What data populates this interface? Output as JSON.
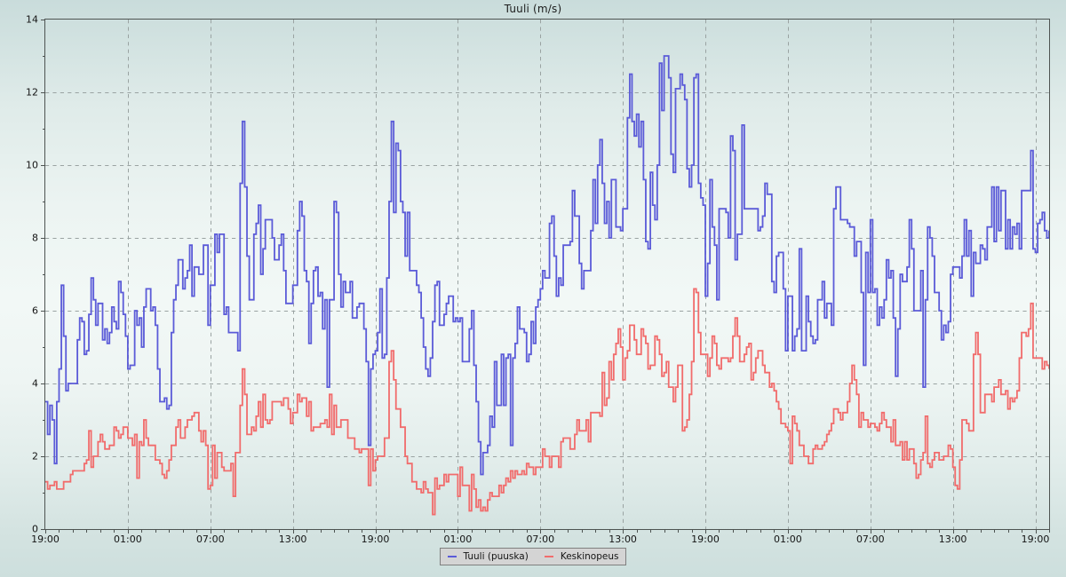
{
  "chart_data": {
    "type": "line",
    "subtype": "step",
    "title": "Tuuli (m/s)",
    "x_start_label": "19:00",
    "x_interval_minutes": 10,
    "x_span_hours": 73,
    "x_major_tick_hours": 6,
    "x_minor_tick_hours": 1,
    "x_tick_labels": [
      "19:00",
      "01:00",
      "07:00",
      "13:00",
      "19:00",
      "01:00",
      "07:00",
      "13:00",
      "19:00",
      "01:00",
      "07:00",
      "13:00",
      "19:00"
    ],
    "y_ticks": [
      0,
      2,
      4,
      6,
      8,
      10,
      12,
      14
    ],
    "y_minor_step": 1,
    "ylim": [
      0,
      14
    ],
    "grid": "dashed",
    "legend_position": "bottom-center",
    "series": [
      {
        "name": "Tuuli (puuska)",
        "color": "#5b5bd8",
        "values": [
          3.5,
          2.6,
          3.4,
          3.0,
          1.8,
          3.5,
          4.4,
          6.7,
          5.3,
          3.8,
          4.0,
          4.0,
          4.0,
          4.0,
          5.2,
          5.8,
          5.7,
          4.8,
          4.9,
          5.9,
          6.9,
          6.3,
          5.6,
          6.2,
          6.2,
          5.2,
          5.5,
          5.1,
          5.4,
          6.1,
          5.7,
          5.5,
          6.8,
          6.5,
          5.9,
          5.3,
          4.4,
          4.5,
          4.5,
          6.0,
          5.6,
          5.8,
          5.0,
          6.1,
          6.6,
          6.6,
          6.0,
          6.1,
          5.6,
          4.4,
          3.5,
          3.5,
          3.6,
          3.3,
          3.4,
          5.4,
          6.3,
          6.7,
          7.4,
          7.4,
          6.6,
          6.9,
          7.1,
          7.8,
          6.4,
          7.2,
          7.2,
          7.0,
          7.0,
          7.8,
          7.8,
          5.6,
          6.7,
          6.7,
          8.1,
          7.6,
          8.1,
          8.1,
          5.9,
          6.1,
          5.4,
          5.4,
          5.4,
          5.4,
          4.9,
          9.5,
          11.2,
          9.4,
          7.5,
          6.3,
          6.3,
          8.1,
          8.4,
          8.9,
          7.0,
          7.7,
          8.5,
          8.5,
          8.5,
          8.0,
          7.4,
          7.4,
          7.8,
          8.1,
          7.1,
          6.2,
          6.2,
          6.2,
          6.7,
          6.7,
          8.2,
          9.0,
          8.6,
          7.1,
          6.8,
          5.1,
          6.2,
          7.1,
          7.2,
          6.4,
          6.5,
          5.5,
          6.3,
          3.9,
          6.3,
          6.3,
          9.0,
          8.7,
          7.0,
          6.1,
          6.8,
          6.5,
          6.5,
          6.8,
          5.8,
          5.8,
          6.1,
          6.2,
          6.2,
          5.5,
          4.6,
          2.3,
          4.4,
          4.8,
          4.9,
          5.4,
          6.6,
          4.7,
          4.8,
          6.9,
          9.0,
          11.2,
          8.7,
          10.6,
          10.4,
          9.0,
          8.7,
          7.5,
          8.7,
          7.1,
          7.1,
          7.1,
          6.7,
          6.5,
          5.8,
          5.0,
          4.4,
          4.2,
          4.7,
          5.7,
          6.7,
          6.8,
          5.6,
          5.6,
          5.9,
          6.2,
          6.4,
          6.4,
          5.7,
          5.8,
          5.7,
          5.8,
          4.6,
          4.6,
          4.6,
          5.5,
          6.0,
          4.5,
          3.5,
          2.4,
          1.5,
          2.1,
          2.1,
          2.3,
          3.1,
          2.8,
          4.6,
          3.4,
          3.4,
          4.8,
          3.4,
          4.7,
          4.8,
          2.3,
          4.7,
          5.1,
          6.1,
          5.5,
          5.5,
          5.4,
          4.6,
          4.8,
          5.7,
          5.1,
          6.1,
          6.3,
          6.6,
          7.1,
          6.9,
          6.9,
          8.4,
          8.6,
          7.5,
          6.4,
          6.9,
          6.7,
          7.8,
          7.8,
          7.8,
          7.9,
          9.3,
          8.6,
          8.6,
          7.3,
          6.6,
          7.1,
          7.1,
          7.1,
          8.2,
          9.6,
          8.4,
          10.0,
          10.7,
          9.5,
          8.4,
          9.0,
          8.0,
          9.6,
          9.6,
          8.3,
          8.3,
          8.2,
          8.8,
          8.8,
          11.3,
          12.5,
          11.2,
          10.8,
          11.4,
          10.5,
          11.2,
          9.6,
          7.9,
          7.7,
          9.8,
          8.9,
          8.5,
          10.0,
          12.8,
          11.5,
          13.0,
          13.0,
          12.4,
          10.3,
          9.8,
          12.1,
          12.1,
          12.5,
          12.2,
          11.8,
          9.9,
          9.4,
          10.0,
          12.4,
          12.5,
          9.5,
          9.1,
          8.9,
          6.4,
          7.3,
          9.6,
          8.3,
          7.8,
          6.3,
          8.8,
          8.8,
          8.8,
          8.7,
          8.0,
          10.8,
          10.4,
          7.4,
          8.1,
          8.1,
          11.1,
          8.8,
          8.8,
          8.8,
          8.8,
          8.8,
          8.8,
          8.2,
          8.3,
          8.6,
          9.5,
          9.2,
          9.2,
          6.8,
          6.5,
          7.5,
          7.6,
          7.6,
          6.6,
          4.9,
          6.4,
          6.4,
          4.9,
          5.3,
          5.5,
          7.7,
          4.9,
          4.9,
          6.4,
          5.7,
          5.3,
          5.1,
          5.2,
          6.3,
          6.3,
          6.8,
          5.8,
          6.2,
          6.2,
          5.6,
          8.8,
          9.4,
          9.4,
          8.5,
          8.5,
          8.5,
          8.4,
          8.3,
          8.3,
          7.5,
          7.9,
          7.9,
          6.5,
          4.5,
          7.6,
          6.5,
          8.5,
          6.5,
          6.6,
          5.6,
          6.1,
          5.8,
          6.3,
          7.4,
          6.9,
          7.1,
          5.8,
          4.2,
          5.5,
          7.0,
          6.8,
          6.8,
          7.2,
          8.5,
          7.7,
          6.0,
          6.0,
          6.0,
          7.1,
          3.9,
          6.3,
          8.3,
          8.0,
          7.5,
          6.5,
          6.5,
          6.0,
          5.2,
          5.6,
          5.4,
          5.7,
          7.0,
          7.2,
          7.2,
          7.2,
          6.9,
          7.5,
          8.5,
          7.5,
          8.2,
          6.4,
          7.6,
          7.3,
          7.3,
          7.8,
          7.7,
          7.4,
          8.3,
          8.3,
          9.4,
          7.9,
          9.4,
          8.2,
          9.3,
          9.3,
          7.7,
          8.5,
          7.7,
          8.3,
          8.1,
          8.4,
          7.7,
          9.3,
          9.3,
          9.3,
          9.3,
          10.4,
          7.7,
          7.6,
          8.4,
          8.5,
          8.7,
          8.2,
          8.0,
          8.2
        ]
      },
      {
        "name": "Keskinopeus",
        "color": "#f16c6c",
        "values": [
          1.3,
          1.1,
          1.2,
          1.2,
          1.3,
          1.1,
          1.1,
          1.1,
          1.3,
          1.3,
          1.3,
          1.5,
          1.6,
          1.6,
          1.6,
          1.6,
          1.6,
          1.8,
          1.9,
          2.7,
          1.7,
          2.0,
          2.0,
          2.4,
          2.6,
          2.4,
          2.2,
          2.2,
          2.3,
          2.3,
          2.8,
          2.7,
          2.5,
          2.6,
          2.8,
          2.8,
          2.5,
          2.5,
          2.3,
          2.6,
          1.4,
          2.4,
          2.3,
          3.0,
          2.5,
          2.3,
          2.3,
          2.3,
          1.9,
          1.9,
          1.8,
          1.5,
          1.4,
          1.6,
          1.9,
          2.3,
          2.3,
          2.8,
          3.0,
          2.5,
          2.5,
          2.8,
          3.0,
          3.0,
          3.1,
          3.2,
          3.2,
          2.7,
          2.4,
          2.7,
          2.3,
          1.1,
          1.2,
          2.3,
          1.4,
          2.1,
          2.1,
          1.7,
          1.6,
          1.6,
          1.6,
          1.8,
          0.9,
          2.1,
          2.1,
          3.4,
          4.4,
          3.7,
          2.6,
          2.6,
          2.8,
          2.7,
          3.1,
          3.5,
          2.8,
          3.7,
          3.0,
          2.9,
          3.0,
          3.5,
          3.5,
          3.5,
          3.5,
          3.4,
          3.6,
          3.6,
          3.3,
          2.9,
          3.2,
          3.2,
          3.7,
          3.5,
          3.6,
          3.6,
          3.1,
          3.5,
          2.7,
          2.8,
          2.8,
          2.8,
          2.9,
          2.9,
          3.0,
          2.8,
          3.7,
          2.6,
          3.4,
          2.8,
          2.8,
          3.0,
          3.0,
          3.0,
          2.5,
          2.5,
          2.5,
          2.2,
          2.2,
          2.1,
          2.2,
          2.2,
          2.2,
          1.2,
          2.2,
          1.6,
          1.9,
          2.0,
          2.0,
          2.0,
          2.5,
          2.5,
          4.6,
          4.9,
          4.1,
          3.3,
          3.3,
          2.8,
          2.8,
          2.0,
          1.8,
          1.8,
          1.3,
          1.3,
          1.1,
          1.1,
          1.0,
          1.3,
          1.1,
          1.0,
          1.0,
          0.4,
          1.4,
          1.1,
          1.2,
          1.2,
          1.5,
          1.3,
          1.5,
          1.5,
          1.5,
          1.5,
          0.9,
          1.7,
          1.2,
          1.2,
          1.2,
          0.5,
          1.5,
          1.1,
          0.6,
          0.8,
          0.5,
          0.6,
          0.5,
          0.8,
          1.0,
          0.9,
          0.9,
          0.9,
          1.2,
          1.0,
          1.2,
          1.4,
          1.3,
          1.6,
          1.4,
          1.6,
          1.5,
          1.5,
          1.6,
          1.5,
          1.8,
          1.7,
          1.7,
          1.5,
          1.7,
          1.7,
          1.7,
          2.2,
          2.0,
          2.0,
          1.7,
          2.0,
          2.0,
          2.0,
          1.7,
          2.4,
          2.5,
          2.5,
          2.5,
          2.2,
          2.2,
          2.6,
          3.0,
          2.7,
          2.7,
          2.7,
          3.0,
          2.4,
          3.2,
          3.2,
          3.2,
          3.2,
          3.1,
          4.3,
          3.4,
          3.6,
          4.6,
          4.1,
          4.8,
          5.1,
          5.5,
          5.0,
          4.1,
          4.7,
          4.9,
          5.6,
          5.6,
          5.2,
          4.8,
          4.8,
          5.5,
          5.3,
          5.1,
          4.4,
          4.5,
          4.5,
          5.3,
          5.2,
          4.8,
          4.2,
          4.3,
          4.6,
          3.9,
          3.9,
          3.5,
          3.9,
          4.5,
          4.5,
          2.7,
          2.8,
          3.0,
          3.7,
          4.6,
          6.6,
          6.5,
          5.4,
          4.8,
          4.8,
          4.8,
          4.2,
          4.7,
          5.3,
          5.1,
          4.5,
          4.4,
          4.7,
          4.7,
          4.7,
          4.6,
          4.7,
          5.3,
          5.8,
          5.3,
          4.6,
          4.6,
          4.8,
          5.0,
          5.1,
          4.1,
          4.3,
          4.7,
          4.9,
          4.9,
          4.5,
          4.3,
          4.3,
          3.9,
          4.0,
          3.8,
          3.5,
          3.3,
          2.9,
          2.9,
          2.8,
          2.7,
          1.8,
          3.1,
          2.9,
          2.7,
          2.3,
          2.3,
          2.0,
          2.0,
          1.8,
          1.8,
          2.2,
          2.3,
          2.2,
          2.2,
          2.3,
          2.4,
          2.6,
          2.7,
          2.9,
          3.3,
          3.3,
          3.2,
          3.0,
          3.2,
          3.2,
          3.5,
          4.0,
          4.5,
          4.1,
          3.7,
          2.8,
          3.2,
          3.0,
          3.0,
          2.8,
          2.9,
          2.9,
          2.8,
          2.7,
          2.9,
          3.2,
          3.0,
          2.8,
          2.8,
          2.4,
          3.0,
          2.3,
          2.3,
          2.4,
          1.9,
          2.4,
          1.9,
          2.2,
          2.2,
          1.8,
          1.4,
          1.5,
          1.9,
          2.1,
          3.1,
          1.8,
          1.7,
          1.9,
          2.1,
          2.1,
          1.9,
          1.9,
          2.0,
          2.0,
          2.3,
          2.2,
          1.7,
          1.2,
          1.1,
          1.9,
          3.0,
          3.0,
          2.9,
          2.7,
          2.7,
          4.8,
          5.4,
          4.8,
          3.2,
          3.2,
          3.7,
          3.7,
          3.7,
          3.5,
          3.9,
          3.9,
          4.1,
          3.7,
          3.7,
          3.8,
          3.3,
          3.6,
          3.5,
          3.6,
          3.8,
          4.7,
          5.4,
          5.4,
          5.3,
          5.5,
          6.2,
          4.7,
          4.7,
          4.7,
          4.7,
          4.4,
          4.6,
          4.5,
          4.4
        ]
      }
    ]
  },
  "colors": {
    "background_top": "#c9dcdb",
    "background_middle": "#f2f8f6",
    "background_bottom": "#cddfdd",
    "grid": "#9aa3a2",
    "axis": "#4e5452",
    "tick_text": "#141414",
    "title_text": "#1c1c1c",
    "legend_background": "#d4d4d4",
    "legend_border": "#7f7f7f",
    "legend_text": "#141414"
  },
  "legend": {
    "items": [
      {
        "label": "Tuuli (puuska)",
        "color": "#5b5bd8"
      },
      {
        "label": "Keskinopeus",
        "color": "#f16c6c"
      }
    ]
  }
}
